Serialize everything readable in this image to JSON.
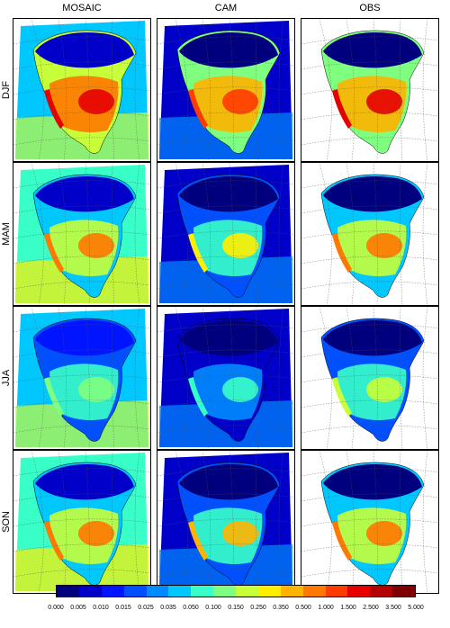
{
  "columns": [
    "MOSAIC",
    "CAM",
    "OBS"
  ],
  "rows": [
    "DJF",
    "MAM",
    "JJA",
    "SON"
  ],
  "colorbar": {
    "labels": [
      "0.000",
      "0.005",
      "0.010",
      "0.015",
      "0.025",
      "0.035",
      "0.050",
      "0.100",
      "0.150",
      "0.250",
      "0.350",
      "0.500",
      "1.000",
      "1.500",
      "2.500",
      "3.500",
      "5.000"
    ],
    "colors": [
      "#00007f",
      "#0000c8",
      "#0014ff",
      "#0050ff",
      "#008cff",
      "#00c8ff",
      "#38ffc7",
      "#7fff7f",
      "#c7ff38",
      "#ffee00",
      "#ffb400",
      "#ff7800",
      "#ff3c00",
      "#e60000",
      "#b40000",
      "#7f0000"
    ]
  }
}
